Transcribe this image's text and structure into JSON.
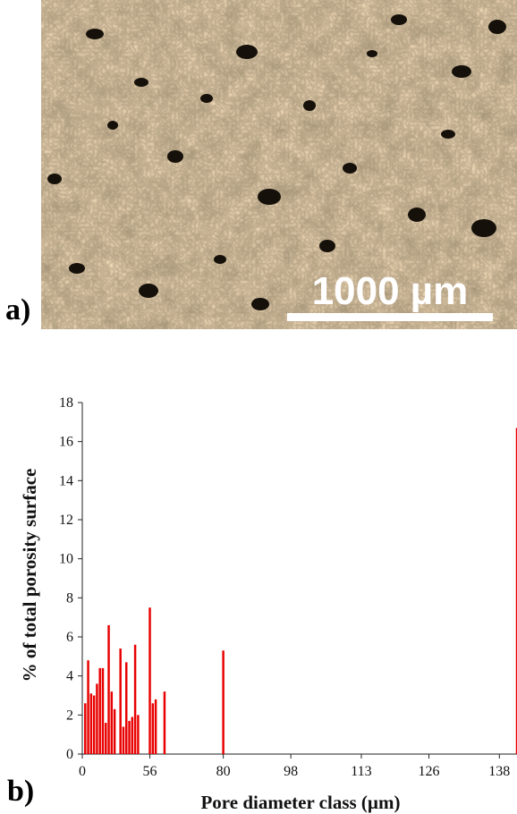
{
  "panel_a": {
    "label": "a)",
    "scale_bar_label": "1000 µm",
    "image_description": "optical micrograph of sintered metal powder with dark pores"
  },
  "panel_b": {
    "label": "b)"
  },
  "colors": {
    "bar": "#e80000",
    "scale_bar": "#ffffff",
    "micrograph_base": "#b89b73",
    "pore": "#141008"
  },
  "chart_data": {
    "type": "bar",
    "title": "",
    "xlabel": "Pore diameter class (µm)",
    "ylabel": "% of total porosity surface",
    "ylim": [
      0,
      18
    ],
    "yticks": [
      0,
      2,
      4,
      6,
      8,
      10,
      12,
      14,
      16,
      18
    ],
    "xlim": [
      0,
      148
    ],
    "xticks": [
      0,
      56,
      80,
      98,
      113,
      126,
      138
    ],
    "xtick_positions": [
      0,
      23,
      48,
      71,
      95,
      118,
      142
    ],
    "grid": false,
    "x": [
      1,
      2,
      3,
      4,
      5,
      6,
      7,
      8,
      9,
      10,
      11,
      12,
      13,
      14,
      15,
      16,
      17,
      18,
      19,
      20,
      21,
      22,
      23,
      24,
      25,
      26,
      27,
      28,
      29,
      30,
      31,
      32,
      33,
      34,
      35,
      36,
      37,
      38,
      39,
      40,
      41,
      42,
      43,
      44,
      45,
      46,
      47,
      48,
      49,
      50,
      51,
      52,
      53,
      54,
      55,
      56,
      57,
      58,
      59,
      60,
      61,
      62,
      63,
      64,
      65,
      66,
      67,
      68,
      69,
      70,
      71,
      72,
      73,
      74,
      75,
      76,
      77,
      78,
      79,
      80,
      81,
      82,
      83,
      84,
      85,
      86,
      87,
      88,
      89,
      90,
      91,
      92,
      93,
      94,
      95,
      96,
      97,
      98,
      99,
      100,
      101,
      102,
      103,
      104,
      105,
      106,
      107,
      108,
      109,
      110,
      111,
      112,
      113,
      114,
      115,
      116,
      117,
      118,
      119,
      120,
      121,
      122,
      123,
      124,
      125,
      126,
      127,
      128,
      129,
      130,
      131,
      132,
      133,
      134,
      135,
      136,
      137,
      138,
      139,
      140,
      141,
      142,
      143,
      144,
      145,
      146,
      147,
      148
    ],
    "values": [
      2.6,
      4.8,
      3.1,
      3.0,
      3.6,
      4.4,
      4.4,
      1.6,
      6.6,
      3.2,
      2.3,
      0,
      5.4,
      1.4,
      4.7,
      1.7,
      1.9,
      5.6,
      2.0,
      0,
      0,
      0,
      7.5,
      2.6,
      2.8,
      0,
      0,
      3.2,
      0,
      0,
      0,
      0,
      0,
      0,
      0,
      0,
      0,
      0,
      0,
      0,
      0,
      0,
      0,
      0,
      0,
      0,
      0,
      5.3,
      0,
      0,
      0,
      0,
      0,
      0,
      0,
      0,
      0,
      0,
      0,
      0,
      0,
      0,
      0,
      0,
      0,
      0,
      0,
      0,
      0,
      0,
      0,
      0,
      0,
      0,
      0,
      0,
      0,
      0,
      0,
      0,
      0,
      0,
      0,
      0,
      0,
      0,
      0,
      0,
      0,
      0,
      0,
      0,
      0,
      0,
      0,
      0,
      0,
      0,
      0,
      0,
      0,
      0,
      0,
      0,
      0,
      0,
      0,
      0,
      0,
      0,
      0,
      0,
      0,
      0,
      0,
      0,
      0,
      0,
      0,
      0,
      0,
      0,
      0,
      0,
      0,
      0,
      0,
      0,
      0,
      0,
      0,
      0,
      0,
      0,
      0,
      0,
      0,
      0,
      0,
      0,
      0,
      0,
      0,
      0,
      0,
      0,
      0,
      16.7
    ]
  }
}
